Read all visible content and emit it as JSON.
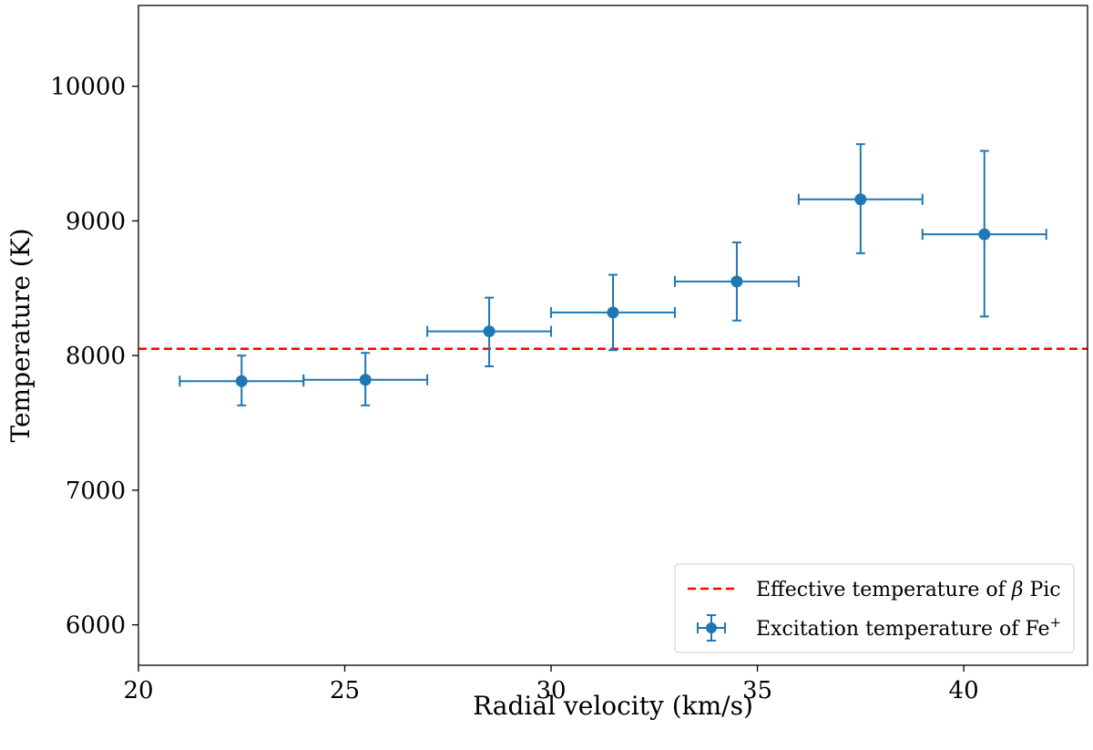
{
  "chart_data": {
    "type": "scatter",
    "xlabel": "Radial velocity (km/s)",
    "ylabel": "Temperature (K)",
    "xlim": [
      20,
      43
    ],
    "ylim": [
      5700,
      10600
    ],
    "xticks": [
      20,
      25,
      30,
      35,
      40
    ],
    "yticks": [
      6000,
      7000,
      8000,
      9000,
      10000
    ],
    "grid": false,
    "legend_position": "lower right",
    "colors": {
      "points": "#1f77b4",
      "reference": "#ff0000"
    },
    "reference_line": {
      "name": "Effective temperature of",
      "symbol": "β",
      "suffix": "Pic",
      "y": 8050,
      "style": "dashed"
    },
    "series": [
      {
        "name": "Excitation temperature of Fe",
        "superscript": "+",
        "points": [
          {
            "x": 22.5,
            "y": 7810,
            "xerr": 1.5,
            "yerr_low": 180,
            "yerr_high": 190
          },
          {
            "x": 25.5,
            "y": 7820,
            "xerr": 1.5,
            "yerr_low": 190,
            "yerr_high": 200
          },
          {
            "x": 28.5,
            "y": 8180,
            "xerr": 1.5,
            "yerr_low": 260,
            "yerr_high": 250
          },
          {
            "x": 31.5,
            "y": 8320,
            "xerr": 1.5,
            "yerr_low": 280,
            "yerr_high": 280
          },
          {
            "x": 34.5,
            "y": 8550,
            "xerr": 1.5,
            "yerr_low": 290,
            "yerr_high": 290
          },
          {
            "x": 37.5,
            "y": 9160,
            "xerr": 1.5,
            "yerr_low": 400,
            "yerr_high": 410
          },
          {
            "x": 40.5,
            "y": 8900,
            "xerr": 1.5,
            "yerr_low": 610,
            "yerr_high": 620
          }
        ]
      }
    ]
  }
}
